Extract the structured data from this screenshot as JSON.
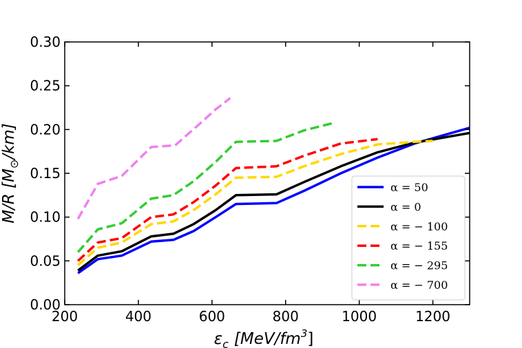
{
  "chart_data": {
    "type": "line",
    "title": "",
    "xlabel": "εc [MeV/fm3]",
    "xlabel_parts": {
      "main": "ε",
      "sub": "c",
      "unit": "[MeV/fm",
      "sup": "3",
      "close": "]"
    },
    "ylabel": "M/R [M⊙/km]",
    "ylabel_parts": {
      "main": "M/R [M",
      "sub": "⊙",
      "close": "/km]"
    },
    "xlim": [
      200,
      1300
    ],
    "ylim": [
      0.0,
      0.3
    ],
    "xticks": [
      200,
      400,
      600,
      800,
      1000,
      1200
    ],
    "xtick_labels": [
      "200",
      "400",
      "600",
      "800",
      "1000",
      "1200"
    ],
    "yticks": [
      0.0,
      0.05,
      0.1,
      0.15,
      0.2,
      0.25,
      0.3
    ],
    "ytick_labels": [
      "0.00",
      "0.05",
      "0.10",
      "0.15",
      "0.20",
      "0.25",
      "0.30"
    ],
    "grid": false,
    "legend_position": "lower-right",
    "series": [
      {
        "name": "α = 50",
        "color": "#0000ff",
        "dash": "solid",
        "x": [
          236,
          290,
          355,
          435,
          495,
          550,
          610,
          665,
          775,
          850,
          950,
          1050,
          1150,
          1300
        ],
        "y": [
          0.036,
          0.052,
          0.056,
          0.072,
          0.074,
          0.084,
          0.1,
          0.115,
          0.116,
          0.13,
          0.15,
          0.168,
          0.184,
          0.202
        ]
      },
      {
        "name": "α = 0",
        "color": "#000000",
        "dash": "solid",
        "x": [
          236,
          290,
          355,
          435,
          495,
          550,
          610,
          665,
          775,
          850,
          950,
          1050,
          1150,
          1300
        ],
        "y": [
          0.039,
          0.056,
          0.061,
          0.078,
          0.081,
          0.092,
          0.108,
          0.125,
          0.126,
          0.14,
          0.158,
          0.174,
          0.185,
          0.196
        ]
      },
      {
        "name": "α = − 100",
        "color": "#ffd700",
        "dash": "dashed",
        "x": [
          236,
          290,
          355,
          435,
          495,
          550,
          610,
          665,
          775,
          850,
          950,
          1050,
          1150,
          1200
        ],
        "y": [
          0.045,
          0.065,
          0.071,
          0.092,
          0.095,
          0.108,
          0.126,
          0.145,
          0.146,
          0.158,
          0.172,
          0.183,
          0.186,
          0.187
        ]
      },
      {
        "name": "α = − 155",
        "color": "#ff0000",
        "dash": "dashed",
        "x": [
          236,
          290,
          355,
          435,
          495,
          550,
          610,
          665,
          775,
          850,
          950,
          1050
        ],
        "y": [
          0.05,
          0.071,
          0.076,
          0.1,
          0.103,
          0.117,
          0.136,
          0.156,
          0.158,
          0.17,
          0.184,
          0.189
        ]
      },
      {
        "name": "α = − 295",
        "color": "#32cd32",
        "dash": "dashed",
        "x": [
          236,
          290,
          355,
          435,
          495,
          550,
          610,
          665,
          775,
          850,
          935
        ],
        "y": [
          0.06,
          0.086,
          0.093,
          0.121,
          0.125,
          0.141,
          0.163,
          0.186,
          0.187,
          0.199,
          0.208
        ]
      },
      {
        "name": "α = − 700",
        "color": "#ee82ee",
        "dash": "dashed",
        "x": [
          236,
          290,
          355,
          435,
          500,
          560,
          610,
          650
        ],
        "y": [
          0.098,
          0.138,
          0.147,
          0.18,
          0.182,
          0.204,
          0.223,
          0.236
        ]
      }
    ]
  }
}
